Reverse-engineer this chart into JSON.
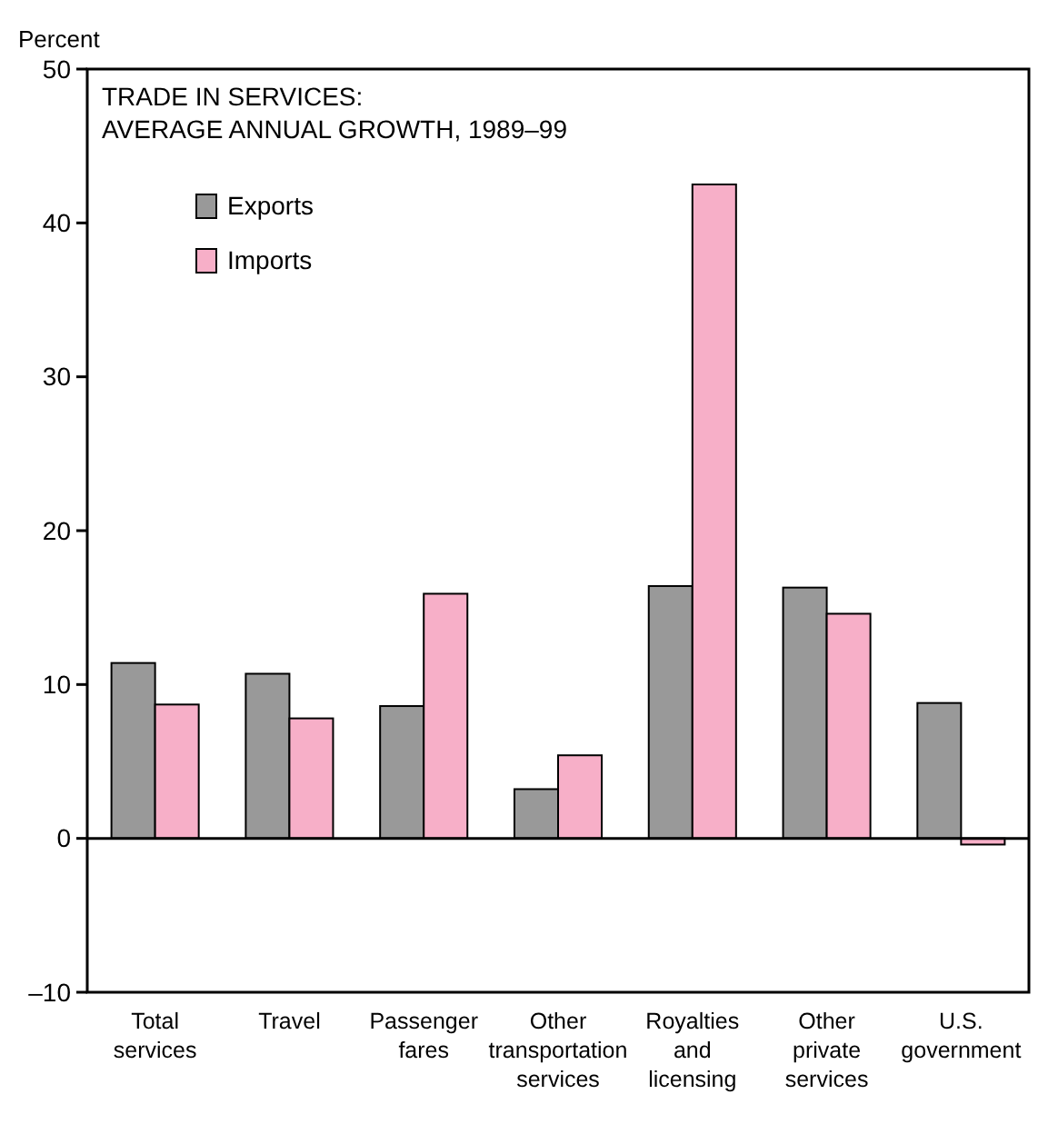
{
  "chart_data": {
    "type": "bar",
    "title": "TRADE IN SERVICES:",
    "subtitle": "AVERAGE ANNUAL GROWTH, 1989–99",
    "ylabel": "Percent",
    "categories": [
      "Total services",
      "Travel",
      "Passenger fares",
      "Other transportation services",
      "Royalties and licensing",
      "Other private services",
      "U.S. government"
    ],
    "series": [
      {
        "name": "Exports",
        "color": "#999999",
        "values": [
          11.4,
          10.7,
          8.6,
          3.2,
          16.4,
          16.3,
          8.8
        ]
      },
      {
        "name": "Imports",
        "color": "#f7afc8",
        "values": [
          8.7,
          7.8,
          15.9,
          5.4,
          42.5,
          14.6,
          -0.4
        ]
      }
    ],
    "ylim": [
      -10,
      50
    ],
    "yticks": [
      {
        "value": -10,
        "label": "–10"
      },
      0,
      10,
      20,
      30,
      40,
      50
    ],
    "ref_lines": [
      {
        "axis": "y",
        "value": 0
      }
    ],
    "legend": "top left"
  }
}
